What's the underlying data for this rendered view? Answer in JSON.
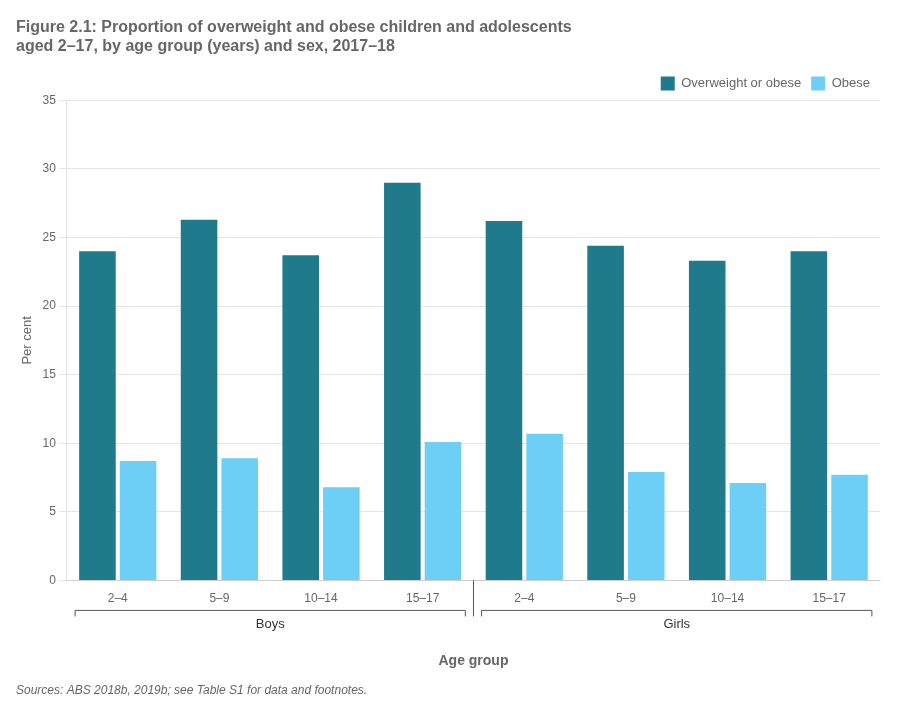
{
  "chart_data": {
    "type": "bar",
    "title": [
      "Figure 2.1: Proportion of overweight and obese children and adolescents",
      "aged 2–17, by age group (years) and sex, 2017–18"
    ],
    "xlabel": "Age group",
    "ylabel": "Per cent",
    "categories": [
      "2–4",
      "5–9",
      "10–14",
      "15–17",
      "2–4",
      "5–9",
      "10–14",
      "15–17"
    ],
    "category_groups": [
      "Boys",
      "Boys",
      "Boys",
      "Boys",
      "Girls",
      "Girls",
      "Girls",
      "Girls"
    ],
    "series": [
      {
        "name": "Overweight or obese",
        "color": "#1f7a8c",
        "values": [
          24.0,
          26.3,
          23.7,
          29.0,
          26.2,
          24.4,
          23.3,
          24.0
        ]
      },
      {
        "name": "Obese",
        "color": "#6dcff6",
        "values": [
          8.7,
          8.9,
          6.8,
          10.1,
          10.7,
          7.9,
          7.1,
          7.7
        ]
      }
    ],
    "ylim": [
      0,
      35
    ],
    "yticks": [
      0,
      5,
      10,
      15,
      20,
      25,
      30,
      35
    ],
    "grid": true,
    "legend": "upper right",
    "source": "Sources: ABS 2018b, 2019b; see Table S1 for data and footnotes."
  }
}
